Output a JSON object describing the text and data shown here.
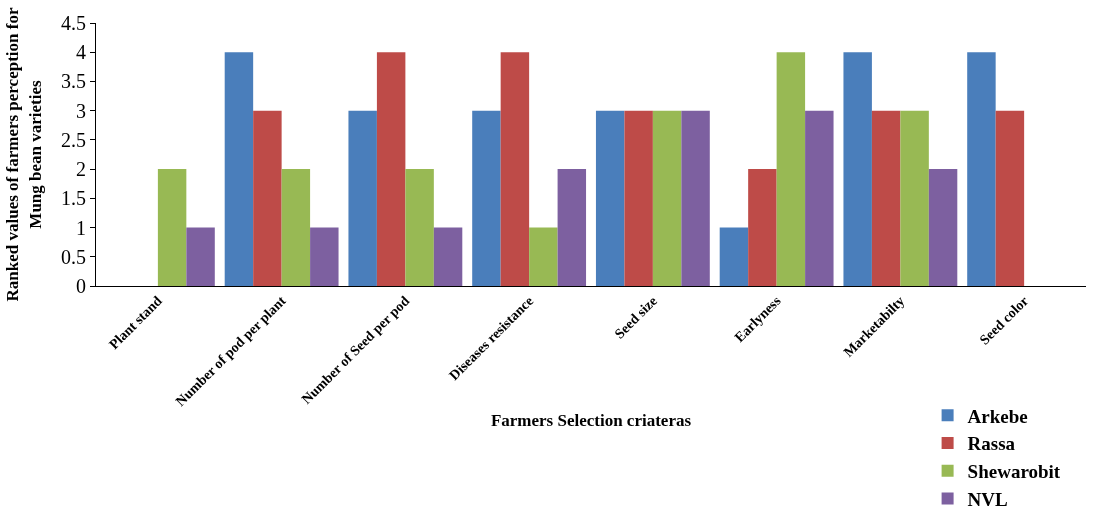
{
  "chart_data": {
    "type": "bar",
    "xlabel": "Farmers Selection criateras",
    "ylabel": "Ranked values of farmers perception for\nMung bean varieties",
    "categories": [
      "Plant stand",
      "Number of pod per plant",
      "Number of Seed per pod",
      "Diseases resistance",
      "Seed size",
      "Earlyness",
      "Marketabilty",
      "Seed color"
    ],
    "series": [
      {
        "name": "Arkebe",
        "color": "#4a7ebb",
        "values": [
          null,
          4,
          3,
          3,
          3,
          1,
          4,
          4
        ]
      },
      {
        "name": "Rassa",
        "color": "#be4b48",
        "values": [
          null,
          3,
          4,
          4,
          3,
          2,
          3,
          3
        ]
      },
      {
        "name": "Shewarobit",
        "color": "#98b954",
        "values": [
          2,
          2,
          2,
          1,
          3,
          4,
          3,
          null
        ]
      },
      {
        "name": "NVL",
        "color": "#7d60a0",
        "values": [
          1,
          1,
          1,
          2,
          3,
          3,
          2,
          null
        ]
      }
    ],
    "ylim": [
      0,
      4.5
    ],
    "yticks": [
      0,
      0.5,
      1,
      1.5,
      2,
      2.5,
      3,
      3.5,
      4,
      4.5
    ],
    "legend": "bottom right"
  }
}
